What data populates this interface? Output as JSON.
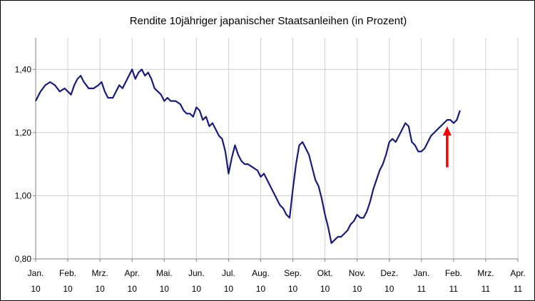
{
  "chart_data": {
    "type": "line",
    "title": "Rendite 10jähriger japanischer Staatsanleihen (in Prozent)",
    "xlabel": "",
    "ylabel": "",
    "ylim": [
      0.8,
      1.5
    ],
    "yticks": [
      0.8,
      1.0,
      1.2,
      1.4
    ],
    "ytick_labels": [
      "0,80",
      "1,00",
      "1,20",
      "1,40"
    ],
    "xtick_labels": [
      {
        "month": "Jan.",
        "year": "10"
      },
      {
        "month": "Feb.",
        "year": "10"
      },
      {
        "month": "Mrz.",
        "year": "10"
      },
      {
        "month": "Apr.",
        "year": "10"
      },
      {
        "month": "Mai.",
        "year": "10"
      },
      {
        "month": "Jun.",
        "year": "10"
      },
      {
        "month": "Jul.",
        "year": "10"
      },
      {
        "month": "Aug.",
        "year": "10"
      },
      {
        "month": "Sep.",
        "year": "10"
      },
      {
        "month": "Okt.",
        "year": "10"
      },
      {
        "month": "Nov.",
        "year": "10"
      },
      {
        "month": "Dez.",
        "year": "10"
      },
      {
        "month": "Jan.",
        "year": "11"
      },
      {
        "month": "Feb.",
        "year": "11"
      },
      {
        "month": "Mrz.",
        "year": "11"
      },
      {
        "month": "Apr.",
        "year": "11"
      }
    ],
    "x_unit": "months since Jan 2010",
    "grid": true,
    "legend": "none",
    "series": [
      {
        "color": "#1a1a7a",
        "points": [
          [
            0.0,
            1.3
          ],
          [
            0.15,
            1.33
          ],
          [
            0.3,
            1.35
          ],
          [
            0.45,
            1.36
          ],
          [
            0.6,
            1.35
          ],
          [
            0.75,
            1.33
          ],
          [
            0.9,
            1.34
          ],
          [
            1.0,
            1.33
          ],
          [
            1.1,
            1.32
          ],
          [
            1.2,
            1.35
          ],
          [
            1.3,
            1.37
          ],
          [
            1.4,
            1.38
          ],
          [
            1.5,
            1.36
          ],
          [
            1.65,
            1.34
          ],
          [
            1.8,
            1.34
          ],
          [
            1.95,
            1.35
          ],
          [
            2.05,
            1.36
          ],
          [
            2.15,
            1.33
          ],
          [
            2.25,
            1.31
          ],
          [
            2.4,
            1.31
          ],
          [
            2.5,
            1.33
          ],
          [
            2.6,
            1.35
          ],
          [
            2.7,
            1.34
          ],
          [
            2.8,
            1.36
          ],
          [
            2.9,
            1.38
          ],
          [
            3.0,
            1.4
          ],
          [
            3.1,
            1.37
          ],
          [
            3.2,
            1.39
          ],
          [
            3.3,
            1.4
          ],
          [
            3.4,
            1.38
          ],
          [
            3.5,
            1.39
          ],
          [
            3.6,
            1.37
          ],
          [
            3.7,
            1.34
          ],
          [
            3.8,
            1.33
          ],
          [
            3.9,
            1.32
          ],
          [
            4.0,
            1.3
          ],
          [
            4.1,
            1.31
          ],
          [
            4.2,
            1.3
          ],
          [
            4.35,
            1.3
          ],
          [
            4.5,
            1.29
          ],
          [
            4.6,
            1.27
          ],
          [
            4.7,
            1.26
          ],
          [
            4.8,
            1.26
          ],
          [
            4.9,
            1.25
          ],
          [
            5.0,
            1.28
          ],
          [
            5.1,
            1.27
          ],
          [
            5.2,
            1.24
          ],
          [
            5.3,
            1.25
          ],
          [
            5.4,
            1.22
          ],
          [
            5.5,
            1.23
          ],
          [
            5.6,
            1.21
          ],
          [
            5.7,
            1.19
          ],
          [
            5.8,
            1.18
          ],
          [
            5.9,
            1.14
          ],
          [
            6.0,
            1.07
          ],
          [
            6.1,
            1.12
          ],
          [
            6.2,
            1.16
          ],
          [
            6.3,
            1.13
          ],
          [
            6.4,
            1.11
          ],
          [
            6.5,
            1.1
          ],
          [
            6.6,
            1.1
          ],
          [
            6.75,
            1.09
          ],
          [
            6.9,
            1.08
          ],
          [
            7.0,
            1.06
          ],
          [
            7.1,
            1.07
          ],
          [
            7.2,
            1.05
          ],
          [
            7.3,
            1.03
          ],
          [
            7.4,
            1.01
          ],
          [
            7.5,
            0.99
          ],
          [
            7.6,
            0.97
          ],
          [
            7.7,
            0.96
          ],
          [
            7.8,
            0.94
          ],
          [
            7.9,
            0.93
          ],
          [
            8.0,
            1.02
          ],
          [
            8.1,
            1.1
          ],
          [
            8.2,
            1.16
          ],
          [
            8.3,
            1.17
          ],
          [
            8.4,
            1.15
          ],
          [
            8.5,
            1.13
          ],
          [
            8.6,
            1.09
          ],
          [
            8.7,
            1.05
          ],
          [
            8.8,
            1.03
          ],
          [
            8.9,
            0.99
          ],
          [
            9.0,
            0.94
          ],
          [
            9.1,
            0.9
          ],
          [
            9.2,
            0.85
          ],
          [
            9.3,
            0.86
          ],
          [
            9.4,
            0.87
          ],
          [
            9.5,
            0.87
          ],
          [
            9.6,
            0.88
          ],
          [
            9.7,
            0.89
          ],
          [
            9.8,
            0.91
          ],
          [
            9.9,
            0.92
          ],
          [
            10.0,
            0.94
          ],
          [
            10.1,
            0.93
          ],
          [
            10.2,
            0.93
          ],
          [
            10.3,
            0.95
          ],
          [
            10.4,
            0.98
          ],
          [
            10.5,
            1.02
          ],
          [
            10.6,
            1.05
          ],
          [
            10.7,
            1.08
          ],
          [
            10.8,
            1.1
          ],
          [
            10.9,
            1.13
          ],
          [
            11.0,
            1.17
          ],
          [
            11.1,
            1.18
          ],
          [
            11.2,
            1.17
          ],
          [
            11.3,
            1.19
          ],
          [
            11.4,
            1.21
          ],
          [
            11.5,
            1.23
          ],
          [
            11.6,
            1.22
          ],
          [
            11.7,
            1.17
          ],
          [
            11.8,
            1.16
          ],
          [
            11.9,
            1.14
          ],
          [
            12.0,
            1.14
          ],
          [
            12.1,
            1.15
          ],
          [
            12.2,
            1.17
          ],
          [
            12.3,
            1.19
          ],
          [
            12.4,
            1.2
          ],
          [
            12.5,
            1.21
          ],
          [
            12.6,
            1.22
          ],
          [
            12.7,
            1.23
          ],
          [
            12.8,
            1.24
          ],
          [
            12.9,
            1.24
          ],
          [
            13.0,
            1.23
          ],
          [
            13.1,
            1.24
          ],
          [
            13.2,
            1.27
          ]
        ]
      }
    ],
    "annotation": {
      "type": "arrow",
      "color": "#ff0000",
      "x": 12.8,
      "y_start": 1.09,
      "y_end": 1.22
    }
  }
}
